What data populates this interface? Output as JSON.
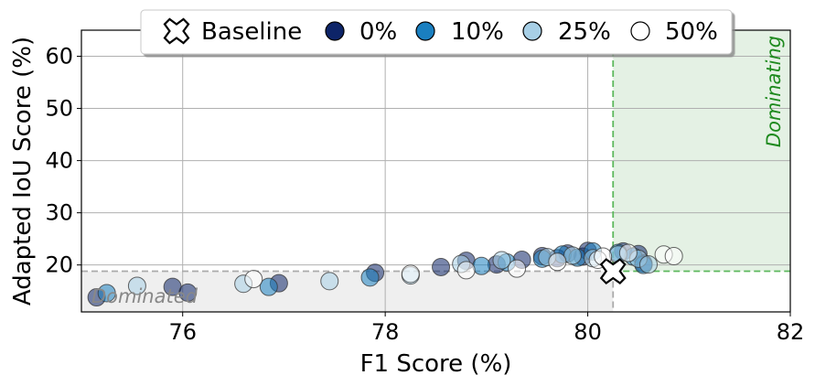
{
  "chart_data": {
    "type": "scatter",
    "xlabel": "F1 Score (%)",
    "ylabel": "Adapted IoU Score (%)",
    "xlim": [
      75,
      82
    ],
    "ylim": [
      11,
      65
    ],
    "xticks": [
      "76",
      "78",
      "80",
      "82"
    ],
    "yticks": [
      "20",
      "30",
      "40",
      "50",
      "60"
    ],
    "grid": true,
    "legend_position": "top",
    "legend": [
      "Baseline",
      "0%",
      "10%",
      "25%",
      "50%"
    ],
    "baseline": {
      "name": "Baseline",
      "x": 80.25,
      "y": 18.8
    },
    "regions": [
      {
        "label": "Dominating",
        "color": "#e4f1e4",
        "edge": "#5cb85c"
      },
      {
        "label": "Dominated",
        "color": "#efefef",
        "edge": "#aaaaaa"
      }
    ],
    "series": [
      {
        "name": "0%",
        "color": "#0d2468",
        "points": [
          [
            75.15,
            13.8
          ],
          [
            75.9,
            15.8
          ],
          [
            76.05,
            14.7
          ],
          [
            76.95,
            16.5
          ],
          [
            77.9,
            18.5
          ],
          [
            78.55,
            19.6
          ],
          [
            78.8,
            20.8
          ],
          [
            79.1,
            20.1
          ],
          [
            79.35,
            21.0
          ],
          [
            79.55,
            21.7
          ],
          [
            79.7,
            21.3
          ],
          [
            79.8,
            22.2
          ],
          [
            79.95,
            21.6
          ],
          [
            80.0,
            22.7
          ],
          [
            80.35,
            22.6
          ],
          [
            80.5,
            22.1
          ],
          [
            80.55,
            20.3
          ]
        ]
      },
      {
        "name": "10%",
        "color": "#1a7fc0",
        "points": [
          [
            75.25,
            14.6
          ],
          [
            76.85,
            15.8
          ],
          [
            77.85,
            17.6
          ],
          [
            78.95,
            19.8
          ],
          [
            79.2,
            20.5
          ],
          [
            79.55,
            21.2
          ],
          [
            79.75,
            22.0
          ],
          [
            79.9,
            21.4
          ],
          [
            80.05,
            22.6
          ],
          [
            80.3,
            22.3
          ],
          [
            80.45,
            21.6
          ],
          [
            80.55,
            20.0
          ]
        ]
      },
      {
        "name": "25%",
        "color": "#a7cfe6",
        "points": [
          [
            75.55,
            16.0
          ],
          [
            76.6,
            16.4
          ],
          [
            77.45,
            16.9
          ],
          [
            78.25,
            18.0
          ],
          [
            78.75,
            20.2
          ],
          [
            79.15,
            20.9
          ],
          [
            79.6,
            21.5
          ],
          [
            79.85,
            21.8
          ],
          [
            80.05,
            21.3
          ],
          [
            80.3,
            22.0
          ],
          [
            80.5,
            21.2
          ],
          [
            80.6,
            20.1
          ]
        ]
      },
      {
        "name": "50%",
        "color": "#ffffff",
        "points": [
          [
            76.7,
            17.3
          ],
          [
            78.25,
            18.3
          ],
          [
            78.8,
            19.0
          ],
          [
            79.3,
            19.3
          ],
          [
            79.7,
            20.6
          ],
          [
            80.1,
            21.0
          ],
          [
            80.4,
            22.3
          ],
          [
            80.75,
            22.0
          ],
          [
            80.85,
            21.7
          ],
          [
            80.15,
            21.6
          ]
        ]
      }
    ]
  }
}
